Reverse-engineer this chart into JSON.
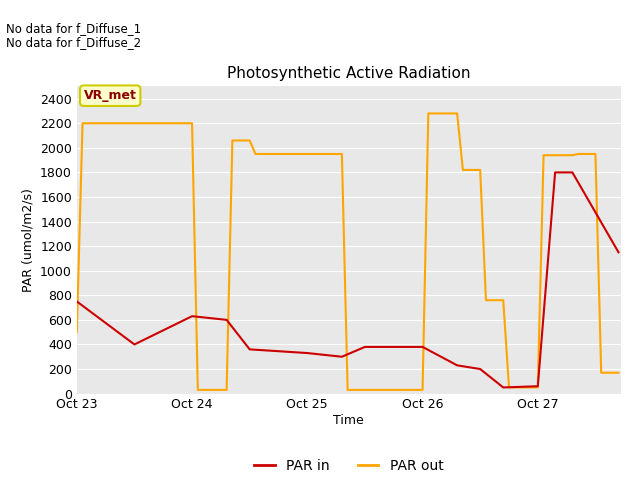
{
  "title": "Photosynthetic Active Radiation",
  "xlabel": "Time",
  "ylabel": "PAR (umol/m2/s)",
  "annotation_lines": [
    "No data for f_Diffuse_1",
    "No data for f_Diffuse_2"
  ],
  "legend_label_box": "VR_met",
  "background_color": "#e8e8e8",
  "ylim": [
    0,
    2500
  ],
  "yticks": [
    0,
    200,
    400,
    600,
    800,
    1000,
    1200,
    1400,
    1600,
    1800,
    2000,
    2200,
    2400
  ],
  "xtick_labels": [
    "Oct 23",
    "Oct 24",
    "Oct 25",
    "Oct 26",
    "Oct 27"
  ],
  "par_in_color": "#cc0000",
  "par_out_color": "#ffa500",
  "par_in_x": [
    0.0,
    0.5,
    1.0,
    1.3,
    1.5,
    2.0,
    2.3,
    2.5,
    3.0,
    3.3,
    3.5,
    3.7,
    4.0,
    4.15,
    4.3,
    4.7
  ],
  "par_in_y": [
    750,
    400,
    630,
    600,
    360,
    330,
    300,
    380,
    380,
    230,
    200,
    50,
    60,
    1800,
    1800,
    1150
  ],
  "par_out_x": [
    0.0,
    0.05,
    0.1,
    1.0,
    1.05,
    1.1,
    1.3,
    1.35,
    1.5,
    1.55,
    2.3,
    2.35,
    2.5,
    2.55,
    3.0,
    3.05,
    3.3,
    3.35,
    3.5,
    3.55,
    3.7,
    3.75,
    4.0,
    4.05,
    4.3,
    4.35,
    4.5,
    4.55,
    4.7
  ],
  "par_out_y": [
    500,
    2200,
    2200,
    2200,
    30,
    30,
    30,
    2060,
    2060,
    1950,
    1950,
    30,
    30,
    30,
    30,
    2280,
    2280,
    1820,
    1820,
    760,
    760,
    50,
    50,
    1940,
    1940,
    1950,
    1950,
    170,
    170
  ],
  "xlim": [
    0,
    4.72
  ],
  "x_day_positions": [
    0,
    1,
    2,
    3,
    4
  ],
  "vrmet_box_color": "#ffffcc",
  "vrmet_edge_color": "#cccc00",
  "vrmet_text_color": "#8b0000",
  "grid_color": "#ffffff",
  "fig_bg": "#ffffff"
}
